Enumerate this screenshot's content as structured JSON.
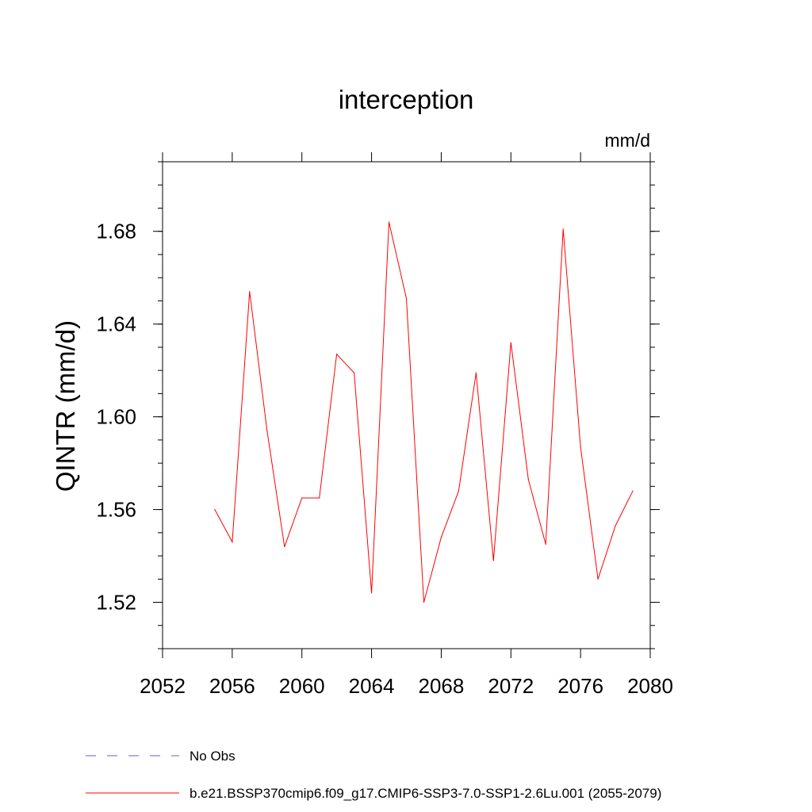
{
  "chart_data": {
    "type": "line",
    "title": "interception",
    "units_label": "mm/d",
    "ylabel": "QINTR  (mm/d)",
    "xlabel": "",
    "xlim": [
      2052,
      2080
    ],
    "ylim": [
      1.5,
      1.71
    ],
    "x_ticks": [
      2052,
      2056,
      2060,
      2064,
      2068,
      2072,
      2076,
      2080
    ],
    "y_ticks": [
      1.52,
      1.56,
      1.6,
      1.64,
      1.68
    ],
    "y_tick_labels": [
      "1.52",
      "1.56",
      "1.60",
      "1.64",
      "1.68"
    ],
    "grid": false,
    "legend_position": "bottom-left",
    "series": [
      {
        "name": "b.e21.BSSP370cmip6.f09_g17.CMIP6-SSP3-7.0-SSP1-2.6Lu.001 (2055-2079)",
        "color": "#ff0000",
        "style": "solid",
        "x": [
          2055,
          2056,
          2057,
          2058,
          2059,
          2060,
          2061,
          2062,
          2063,
          2064,
          2065,
          2066,
          2067,
          2068,
          2069,
          2070,
          2071,
          2072,
          2073,
          2074,
          2075,
          2076,
          2077,
          2078,
          2079
        ],
        "y": [
          1.56,
          1.546,
          1.654,
          1.594,
          1.544,
          1.565,
          1.565,
          1.627,
          1.619,
          1.524,
          1.684,
          1.651,
          1.52,
          1.548,
          1.568,
          1.619,
          1.538,
          1.632,
          1.573,
          1.545,
          1.681,
          1.587,
          1.53,
          1.553,
          1.568
        ]
      },
      {
        "name": "No Obs",
        "color": "#6a5acd",
        "style": "dashed",
        "x": [],
        "y": []
      }
    ]
  }
}
